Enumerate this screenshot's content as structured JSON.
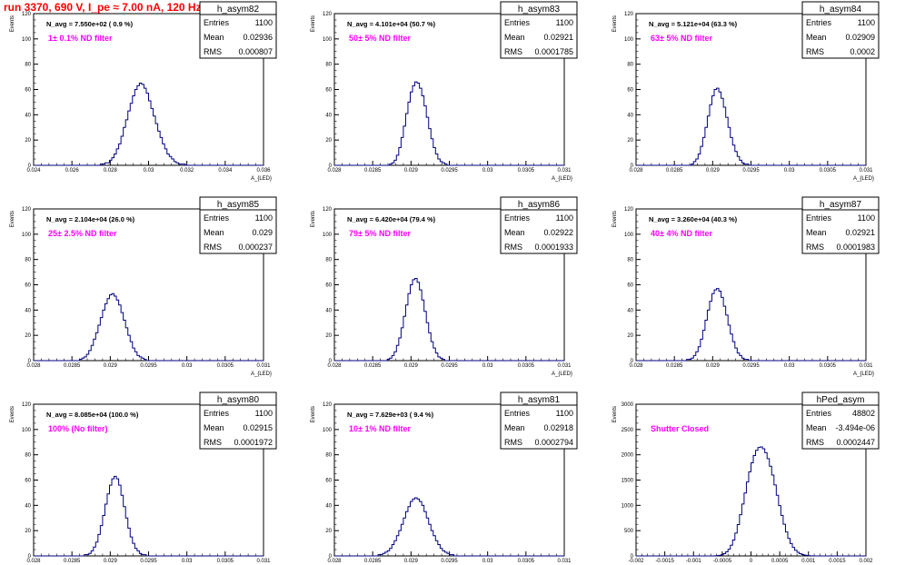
{
  "title": "run 3370,   690 V, I_pe ≈ 7.00 nA, 120 Hz",
  "colors": {
    "title": "#ff0000",
    "hist": "#000080",
    "note": "#ff00ff",
    "axis": "#000000",
    "frame": "#000000"
  },
  "chart_data": [
    {
      "type": "histogram",
      "name": "h_asym82",
      "stats": {
        "Entries": "1100",
        "Mean": "0.02936",
        "RMS": "0.000807"
      },
      "label_navg": "N_avg = 7.550e+02 ( 0.9 %)",
      "note": "1± 0.1% ND filter",
      "ylabel": "Events",
      "xlabel": "A_{LED}",
      "xlim": [
        0.024,
        0.036
      ],
      "ylim": [
        0,
        120
      ],
      "xticks": [
        0.024,
        0.026,
        0.028,
        0.03,
        0.032,
        0.034,
        0.036
      ],
      "xtick_labels": [
        "0.024",
        "0.026",
        "0.028",
        "0.03",
        "0.032",
        "0.034",
        "0.036"
      ],
      "yticks": [
        0,
        20,
        40,
        60,
        80,
        100,
        120
      ],
      "ytick_labels": [
        "0",
        "20",
        "40",
        "60",
        "80",
        "100",
        "120"
      ],
      "nbins": 100,
      "counts": [
        0,
        0,
        0,
        0,
        0,
        0,
        0,
        0,
        0,
        0,
        0,
        0,
        0,
        0,
        0,
        0,
        0,
        0,
        0,
        0,
        0,
        0,
        0,
        0,
        0,
        0,
        0,
        0,
        0,
        1,
        1,
        2,
        2,
        4,
        6,
        9,
        13,
        17,
        23,
        30,
        36,
        43,
        49,
        55,
        60,
        63,
        65,
        64,
        61,
        57,
        51,
        45,
        39,
        33,
        27,
        22,
        17,
        13,
        9,
        7,
        5,
        3,
        2,
        1,
        1,
        1,
        0,
        0,
        0,
        0,
        0,
        0,
        0,
        0,
        0,
        0,
        0,
        0,
        0,
        0,
        0,
        0,
        0,
        0,
        0,
        0,
        0,
        0,
        0,
        0,
        0,
        0,
        0,
        0,
        0,
        0,
        0,
        0,
        0,
        0
      ]
    },
    {
      "type": "histogram",
      "name": "h_asym83",
      "stats": {
        "Entries": "1100",
        "Mean": "0.02921",
        "RMS": "0.0001785"
      },
      "label_navg": "N_avg = 4.101e+04 (50.7 %)",
      "note": "50± 5% ND filter",
      "ylabel": "Events",
      "xlabel": "A_{LED}",
      "xlim": [
        0.028,
        0.031
      ],
      "ylim": [
        0,
        120
      ],
      "xticks": [
        0.028,
        0.0285,
        0.029,
        0.0295,
        0.03,
        0.0305,
        0.031
      ],
      "xtick_labels": [
        "0.028",
        "0.0285",
        "0.029",
        "0.0295",
        "0.03",
        "0.0305",
        "0.031"
      ],
      "yticks": [
        0,
        20,
        40,
        60,
        80,
        100,
        120
      ],
      "ytick_labels": [
        "0",
        "20",
        "40",
        "60",
        "80",
        "100",
        "120"
      ],
      "nbins": 100,
      "counts": [
        0,
        0,
        0,
        0,
        0,
        0,
        0,
        0,
        0,
        0,
        0,
        0,
        0,
        0,
        0,
        0,
        0,
        0,
        0,
        0,
        0,
        0,
        0,
        0,
        1,
        2,
        4,
        8,
        14,
        22,
        31,
        41,
        50,
        58,
        63,
        66,
        65,
        61,
        55,
        47,
        38,
        29,
        21,
        14,
        9,
        5,
        3,
        2,
        1,
        0,
        0,
        0,
        0,
        0,
        0,
        0,
        0,
        0,
        0,
        0,
        0,
        0,
        0,
        0,
        0,
        0,
        0,
        0,
        0,
        0,
        0,
        0,
        0,
        0,
        0,
        0,
        0,
        0,
        0,
        0,
        0,
        0,
        0,
        0,
        0,
        0,
        0,
        0,
        0,
        0,
        0,
        0,
        0,
        0,
        0,
        0,
        0,
        0,
        0,
        0
      ]
    },
    {
      "type": "histogram",
      "name": "h_asym84",
      "stats": {
        "Entries": "1100",
        "Mean": "0.02909",
        "RMS": "0.0002"
      },
      "label_navg": "N_avg = 5.121e+04 (63.3 %)",
      "note": "63± 5% ND filter",
      "ylabel": "Events",
      "xlabel": "A_{LED}",
      "xlim": [
        0.028,
        0.031
      ],
      "ylim": [
        0,
        120
      ],
      "xticks": [
        0.028,
        0.0285,
        0.029,
        0.0295,
        0.03,
        0.0305,
        0.031
      ],
      "xtick_labels": [
        "0.028",
        "0.0285",
        "0.029",
        "0.0295",
        "0.03",
        "0.0305",
        "0.031"
      ],
      "yticks": [
        0,
        20,
        40,
        60,
        80,
        100,
        120
      ],
      "ytick_labels": [
        "0",
        "20",
        "40",
        "60",
        "80",
        "100",
        "120"
      ],
      "nbins": 100,
      "counts": [
        0,
        0,
        0,
        0,
        0,
        0,
        0,
        0,
        0,
        0,
        0,
        0,
        0,
        0,
        0,
        0,
        0,
        0,
        0,
        0,
        0,
        0,
        0,
        0,
        1,
        3,
        5,
        9,
        15,
        22,
        30,
        39,
        48,
        55,
        60,
        61,
        58,
        53,
        46,
        38,
        30,
        22,
        16,
        11,
        7,
        4,
        2,
        1,
        1,
        0,
        0,
        0,
        0,
        0,
        0,
        0,
        0,
        0,
        0,
        0,
        0,
        0,
        0,
        0,
        0,
        0,
        0,
        0,
        0,
        0,
        0,
        0,
        0,
        0,
        0,
        0,
        0,
        0,
        0,
        0,
        0,
        0,
        0,
        0,
        0,
        0,
        0,
        0,
        0,
        0,
        0,
        0,
        0,
        0,
        0,
        0,
        0,
        0,
        0,
        0
      ]
    },
    {
      "type": "histogram",
      "name": "h_asym85",
      "stats": {
        "Entries": "1100",
        "Mean": "0.029",
        "RMS": "0.000237"
      },
      "label_navg": "N_avg = 2.104e+04 (26.0 %)",
      "note": "25± 2.5% ND filter",
      "ylabel": "Events",
      "xlabel": "A_{LED}",
      "xlim": [
        0.028,
        0.031
      ],
      "ylim": [
        0,
        120
      ],
      "xticks": [
        0.028,
        0.0285,
        0.029,
        0.0295,
        0.03,
        0.0305,
        0.031
      ],
      "xtick_labels": [
        "0.028",
        "0.0285",
        "0.029",
        "0.0295",
        "0.03",
        "0.0305",
        "0.031"
      ],
      "yticks": [
        0,
        20,
        40,
        60,
        80,
        100,
        120
      ],
      "ytick_labels": [
        "0",
        "20",
        "40",
        "60",
        "80",
        "100",
        "120"
      ],
      "nbins": 100,
      "counts": [
        0,
        0,
        0,
        0,
        0,
        0,
        0,
        0,
        0,
        0,
        0,
        0,
        0,
        0,
        0,
        0,
        0,
        0,
        0,
        0,
        1,
        2,
        3,
        5,
        8,
        12,
        17,
        22,
        28,
        34,
        40,
        45,
        49,
        52,
        53,
        51,
        48,
        44,
        38,
        32,
        26,
        20,
        15,
        10,
        7,
        4,
        3,
        2,
        1,
        0,
        0,
        0,
        0,
        0,
        0,
        0,
        0,
        0,
        0,
        0,
        0,
        0,
        0,
        0,
        0,
        0,
        0,
        0,
        0,
        0,
        0,
        0,
        0,
        0,
        0,
        0,
        0,
        0,
        0,
        0,
        0,
        0,
        0,
        0,
        0,
        0,
        0,
        0,
        0,
        0,
        0,
        0,
        0,
        0,
        0,
        0,
        0,
        0,
        0,
        0
      ]
    },
    {
      "type": "histogram",
      "name": "h_asym86",
      "stats": {
        "Entries": "1100",
        "Mean": "0.02922",
        "RMS": "0.0001933"
      },
      "label_navg": "N_avg = 6.420e+04 (79.4 %)",
      "note": "79± 5% ND filter",
      "ylabel": "Events",
      "xlabel": "A_{LED}",
      "xlim": [
        0.028,
        0.031
      ],
      "ylim": [
        0,
        120
      ],
      "xticks": [
        0.028,
        0.0285,
        0.029,
        0.0295,
        0.03,
        0.0305,
        0.031
      ],
      "xtick_labels": [
        "0.028",
        "0.0285",
        "0.029",
        "0.0295",
        "0.03",
        "0.0305",
        "0.031"
      ],
      "yticks": [
        0,
        20,
        40,
        60,
        80,
        100,
        120
      ],
      "ytick_labels": [
        "0",
        "20",
        "40",
        "60",
        "80",
        "100",
        "120"
      ],
      "nbins": 100,
      "counts": [
        0,
        0,
        0,
        0,
        0,
        0,
        0,
        0,
        0,
        0,
        0,
        0,
        0,
        0,
        0,
        0,
        0,
        0,
        0,
        0,
        0,
        0,
        0,
        1,
        2,
        4,
        7,
        12,
        18,
        26,
        35,
        44,
        53,
        60,
        64,
        65,
        62,
        56,
        48,
        39,
        30,
        22,
        15,
        10,
        6,
        3,
        2,
        1,
        0,
        0,
        0,
        0,
        0,
        0,
        0,
        0,
        0,
        0,
        0,
        0,
        0,
        0,
        0,
        0,
        0,
        0,
        0,
        0,
        0,
        0,
        0,
        0,
        0,
        0,
        0,
        0,
        0,
        0,
        0,
        0,
        0,
        0,
        0,
        0,
        0,
        0,
        0,
        0,
        0,
        0,
        0,
        0,
        0,
        0,
        0,
        0,
        0,
        0,
        0,
        0
      ]
    },
    {
      "type": "histogram",
      "name": "h_asym87",
      "stats": {
        "Entries": "1100",
        "Mean": "0.02921",
        "RMS": "0.0001983"
      },
      "label_navg": "N_avg = 3.260e+04 (40.3 %)",
      "note": "40± 4% ND filter",
      "ylabel": "Events",
      "xlabel": "A_{LED}",
      "xlim": [
        0.028,
        0.031
      ],
      "ylim": [
        0,
        120
      ],
      "xticks": [
        0.028,
        0.0285,
        0.029,
        0.0295,
        0.03,
        0.0305,
        0.031
      ],
      "xtick_labels": [
        "0.028",
        "0.0285",
        "0.029",
        "0.0295",
        "0.03",
        "0.0305",
        "0.031"
      ],
      "yticks": [
        0,
        20,
        40,
        60,
        80,
        100,
        120
      ],
      "ytick_labels": [
        "0",
        "20",
        "40",
        "60",
        "80",
        "100",
        "120"
      ],
      "nbins": 100,
      "counts": [
        0,
        0,
        0,
        0,
        0,
        0,
        0,
        0,
        0,
        0,
        0,
        0,
        0,
        0,
        0,
        0,
        0,
        0,
        0,
        0,
        0,
        0,
        1,
        1,
        2,
        4,
        7,
        11,
        17,
        24,
        32,
        40,
        47,
        53,
        56,
        57,
        55,
        50,
        43,
        36,
        28,
        21,
        15,
        10,
        6,
        4,
        2,
        1,
        1,
        0,
        0,
        0,
        0,
        0,
        0,
        0,
        0,
        0,
        0,
        0,
        0,
        0,
        0,
        0,
        0,
        0,
        0,
        0,
        0,
        0,
        0,
        0,
        0,
        0,
        0,
        0,
        0,
        0,
        0,
        0,
        0,
        0,
        0,
        0,
        0,
        0,
        0,
        0,
        0,
        0,
        0,
        0,
        0,
        0,
        0,
        0,
        0,
        0,
        0,
        0
      ]
    },
    {
      "type": "histogram",
      "name": "h_asym80",
      "stats": {
        "Entries": "1100",
        "Mean": "0.02915",
        "RMS": "0.0001972"
      },
      "label_navg": "N_avg = 8.085e+04 (100.0 %)",
      "note": "100% (No filter)",
      "ylabel": "Events",
      "xlabel": "A_{LED}",
      "xlim": [
        0.028,
        0.031
      ],
      "ylim": [
        0,
        120
      ],
      "xticks": [
        0.028,
        0.0285,
        0.029,
        0.0295,
        0.03,
        0.0305,
        0.031
      ],
      "xtick_labels": [
        "0.028",
        "0.0285",
        "0.029",
        "0.0295",
        "0.03",
        "0.0305",
        "0.031"
      ],
      "yticks": [
        0,
        20,
        40,
        60,
        80,
        100,
        120
      ],
      "ytick_labels": [
        "0",
        "20",
        "40",
        "60",
        "80",
        "100",
        "120"
      ],
      "nbins": 100,
      "counts": [
        0,
        0,
        0,
        0,
        0,
        0,
        0,
        0,
        0,
        0,
        0,
        0,
        0,
        0,
        0,
        0,
        0,
        0,
        0,
        0,
        0,
        0,
        1,
        1,
        2,
        4,
        7,
        11,
        17,
        24,
        32,
        41,
        49,
        56,
        61,
        63,
        61,
        56,
        48,
        39,
        30,
        22,
        15,
        10,
        6,
        4,
        2,
        1,
        1,
        0,
        0,
        0,
        0,
        0,
        0,
        0,
        0,
        0,
        0,
        0,
        0,
        0,
        0,
        0,
        0,
        0,
        0,
        0,
        0,
        0,
        0,
        0,
        0,
        0,
        0,
        0,
        0,
        0,
        0,
        0,
        0,
        0,
        0,
        0,
        0,
        0,
        0,
        0,
        0,
        0,
        0,
        0,
        0,
        0,
        0,
        0,
        0,
        0,
        0,
        0
      ]
    },
    {
      "type": "histogram",
      "name": "h_asym81",
      "stats": {
        "Entries": "1100",
        "Mean": "0.02918",
        "RMS": "0.0002794"
      },
      "label_navg": "N_avg = 7.629e+03 ( 9.4 %)",
      "note": "10± 1% ND filter",
      "ylabel": "Events",
      "xlabel": "A_{LED}",
      "xlim": [
        0.028,
        0.031
      ],
      "ylim": [
        0,
        120
      ],
      "xticks": [
        0.028,
        0.0285,
        0.029,
        0.0295,
        0.03,
        0.0305,
        0.031
      ],
      "xtick_labels": [
        "0.028",
        "0.0285",
        "0.029",
        "0.0295",
        "0.03",
        "0.0305",
        "0.031"
      ],
      "yticks": [
        0,
        20,
        40,
        60,
        80,
        100,
        120
      ],
      "ytick_labels": [
        "0",
        "20",
        "40",
        "60",
        "80",
        "100",
        "120"
      ],
      "nbins": 100,
      "counts": [
        0,
        0,
        0,
        0,
        0,
        0,
        0,
        0,
        0,
        0,
        0,
        0,
        0,
        0,
        0,
        0,
        0,
        0,
        0,
        1,
        1,
        2,
        3,
        4,
        6,
        9,
        12,
        16,
        20,
        25,
        30,
        35,
        39,
        43,
        45,
        46,
        45,
        43,
        40,
        35,
        30,
        25,
        20,
        16,
        12,
        9,
        6,
        4,
        3,
        2,
        1,
        1,
        0,
        0,
        0,
        0,
        0,
        0,
        0,
        0,
        0,
        0,
        0,
        0,
        0,
        0,
        0,
        0,
        0,
        0,
        0,
        0,
        0,
        0,
        0,
        0,
        0,
        0,
        0,
        0,
        0,
        0,
        0,
        0,
        0,
        0,
        0,
        0,
        0,
        0,
        0,
        0,
        0,
        0,
        0,
        0,
        0,
        0,
        0,
        0
      ]
    },
    {
      "type": "histogram",
      "name": "hPed_asym",
      "stats": {
        "Entries": "48802",
        "Mean": "-3.494e-06",
        "RMS": "0.0002447"
      },
      "label_navg": "",
      "note": "Shutter Closed",
      "ylabel": "Events",
      "xlabel": "",
      "xlim": [
        -0.002,
        0.002
      ],
      "ylim": [
        0,
        3000
      ],
      "xticks": [
        -0.002,
        -0.0015,
        -0.001,
        -0.0005,
        0,
        0.0005,
        0.001,
        0.0015,
        0.002
      ],
      "xtick_labels": [
        "-0.002",
        "-0.0015",
        "-0.001",
        "-0.0005",
        "0",
        "0.0005",
        "0.001",
        "0.0015",
        "0.002"
      ],
      "yticks": [
        0,
        500,
        1000,
        1500,
        2000,
        2500,
        3000
      ],
      "ytick_labels": [
        "0",
        "500",
        "1000",
        "1500",
        "2000",
        "2500",
        "3000"
      ],
      "nbins": 100,
      "counts": [
        0,
        0,
        0,
        0,
        0,
        0,
        0,
        0,
        0,
        0,
        0,
        0,
        0,
        0,
        0,
        0,
        0,
        0,
        0,
        0,
        0,
        0,
        0,
        0,
        0,
        0,
        0,
        0,
        0,
        0,
        0,
        0,
        0,
        1,
        3,
        6,
        12,
        24,
        45,
        80,
        133,
        210,
        315,
        452,
        620,
        814,
        1026,
        1245,
        1462,
        1664,
        1841,
        1985,
        2088,
        2145,
        2155,
        2119,
        2041,
        1924,
        1774,
        1598,
        1404,
        1199,
        995,
        802,
        626,
        473,
        346,
        245,
        168,
        112,
        72,
        44,
        26,
        15,
        8,
        4,
        2,
        1,
        1,
        0,
        0,
        0,
        0,
        0,
        0,
        0,
        0,
        0,
        0,
        0,
        0,
        0,
        0,
        0,
        0,
        0,
        0,
        0,
        0,
        0
      ]
    }
  ]
}
